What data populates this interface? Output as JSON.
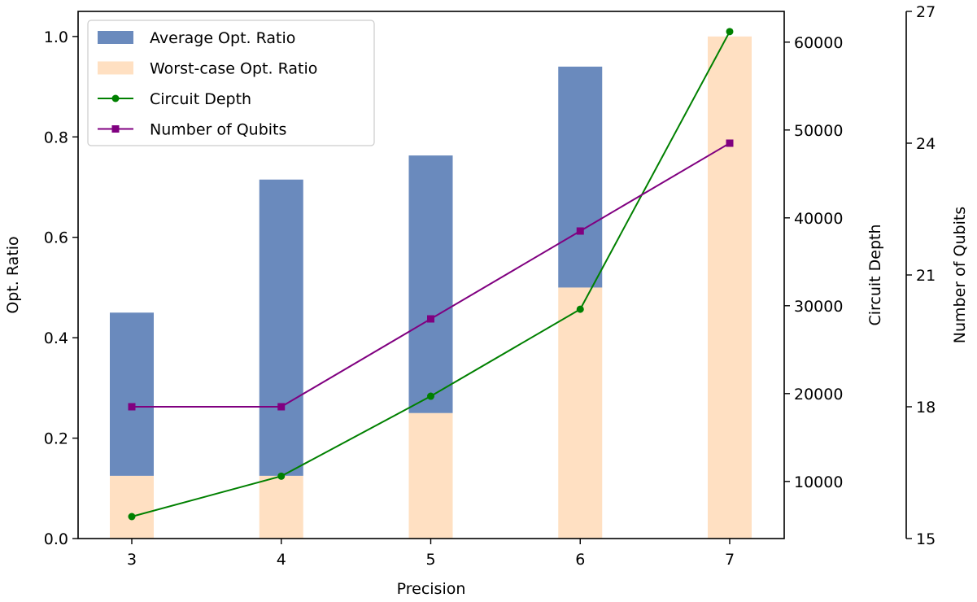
{
  "chart_data": {
    "type": "bar",
    "categories": [
      "3",
      "4",
      "5",
      "6",
      "7"
    ],
    "xlabel": "Precision",
    "axes": {
      "left": {
        "label": "Opt. Ratio",
        "range": [
          0,
          1.05
        ],
        "ticks": [
          "0.0",
          "0.2",
          "0.4",
          "0.6",
          "0.8",
          "1.0"
        ]
      },
      "right": {
        "label": "Circuit Depth",
        "range": [
          3500,
          63500
        ],
        "ticks": [
          "10000",
          "20000",
          "30000",
          "40000",
          "50000",
          "60000"
        ]
      },
      "right2": {
        "label": "Number of Qubits",
        "range": [
          15,
          27
        ],
        "ticks": [
          "15",
          "18",
          "21",
          "24",
          "27"
        ]
      }
    },
    "bars": [
      {
        "name": "Average Opt. Ratio",
        "bottom": [
          0.125,
          0.125,
          0.25,
          0.5,
          0.0
        ],
        "top": [
          0.45,
          0.715,
          0.763,
          0.94,
          0.0
        ],
        "color": "#4c72b0",
        "opacity": 0.83
      },
      {
        "name": "Worst-case Opt. Ratio",
        "values": [
          0.125,
          0.125,
          0.25,
          0.5,
          1.0
        ],
        "color": "#ffe0c2"
      }
    ],
    "series": [
      {
        "name": "Circuit Depth",
        "axis": "right",
        "values": [
          6000,
          10600,
          19700,
          29600,
          61200
        ],
        "color": "#008000",
        "marker": "circle"
      },
      {
        "name": "Number of Qubits",
        "axis": "right2",
        "values": [
          18.0,
          18.0,
          20.0,
          22.0,
          24.0
        ],
        "color": "#800080",
        "marker": "square"
      }
    ],
    "legend": {
      "position": "top-left"
    },
    "grid": false
  }
}
